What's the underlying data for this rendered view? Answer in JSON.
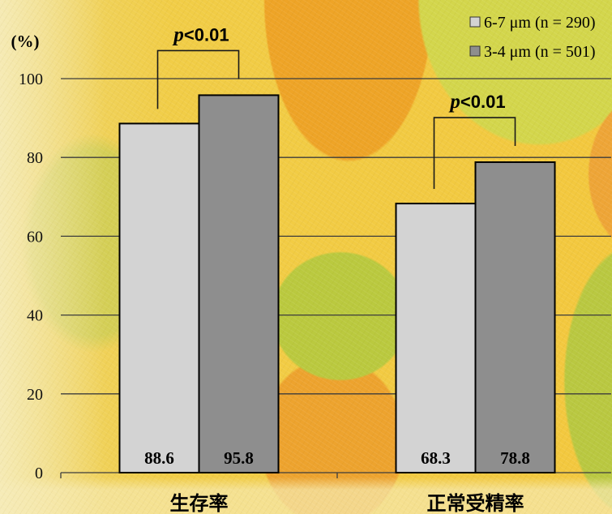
{
  "chart_data": {
    "type": "bar",
    "categories": [
      "生存率",
      "正常受精率"
    ],
    "series": [
      {
        "name": "6-7 μm (n = 290)",
        "values": [
          88.6,
          68.3
        ],
        "color": "#d3d3d3"
      },
      {
        "name": "3-4 μm (n = 501)",
        "values": [
          95.8,
          78.8
        ],
        "color": "#8e8e8e"
      }
    ],
    "ylabel": "(%)",
    "ylim": [
      0,
      100
    ],
    "yticks": [
      0,
      20,
      40,
      60,
      80,
      100
    ],
    "grid": true,
    "legend": "top-right",
    "data_labels": "inside-bottom",
    "significance": [
      {
        "category": "生存率",
        "text": "p<0.01"
      },
      {
        "category": "正常受精率",
        "text": "p<0.01"
      }
    ],
    "bar_edge_color": "#000000",
    "grid_color": "#3c3c3c"
  }
}
